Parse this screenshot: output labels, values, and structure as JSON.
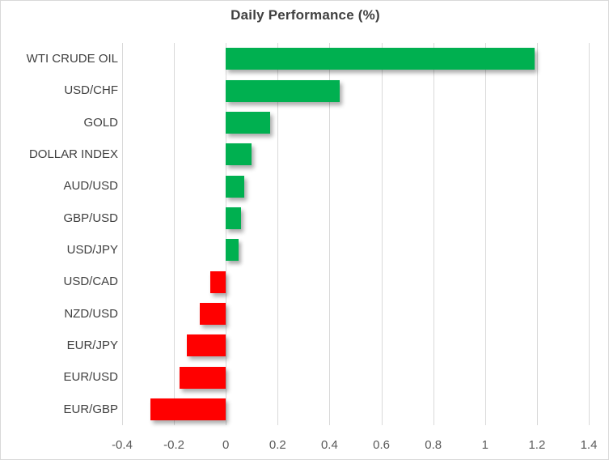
{
  "title": "Daily Performance (%)",
  "colors": {
    "positive": "#00B050",
    "negative": "#FF0000",
    "grid": "#D9D9D9",
    "title_text": "#404040",
    "category_text": "#404040",
    "tick_text": "#595959",
    "background": "#FFFFFF"
  },
  "chart_data": {
    "type": "bar",
    "orientation": "horizontal",
    "title": "Daily Performance (%)",
    "categories": [
      "WTI CRUDE OIL",
      "USD/CHF",
      "GOLD",
      "DOLLAR INDEX",
      "AUD/USD",
      "GBP/USD",
      "USD/JPY",
      "USD/CAD",
      "NZD/USD",
      "EUR/JPY",
      "EUR/USD",
      "EUR/GBP"
    ],
    "values": [
      1.19,
      0.44,
      0.17,
      0.1,
      0.07,
      0.06,
      0.05,
      -0.06,
      -0.1,
      -0.15,
      -0.18,
      -0.29
    ],
    "xlabel": "",
    "ylabel": "",
    "xlim": [
      -0.4,
      1.4
    ],
    "xticks": [
      -0.4,
      -0.2,
      0,
      0.2,
      0.4,
      0.6,
      0.8,
      1,
      1.2,
      1.4
    ],
    "xtick_labels": [
      "-0.4",
      "-0.2",
      "0",
      "0.2",
      "0.4",
      "0.6",
      "0.8",
      "1",
      "1.2",
      "1.4"
    ],
    "grid": true,
    "legend": false,
    "bar_color_positive": "#00B050",
    "bar_color_negative": "#FF0000"
  }
}
